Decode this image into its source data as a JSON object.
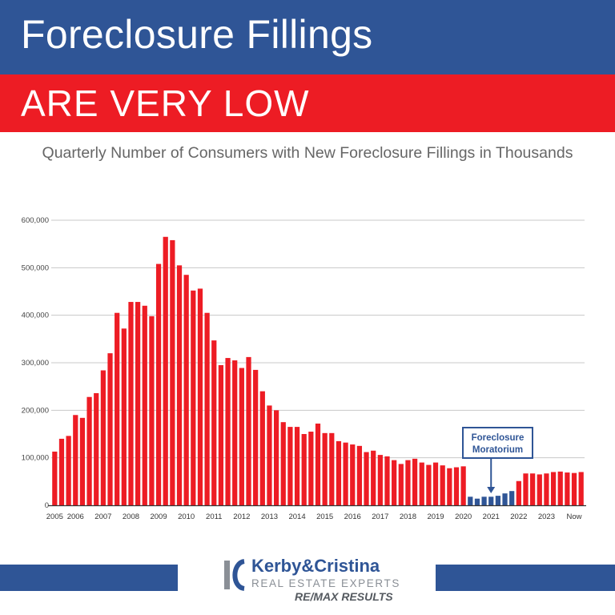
{
  "header": {
    "title": "Foreclosure Fillings",
    "subtitle": "ARE VERY LOW"
  },
  "caption": "Quarterly Number of Consumers with New Foreclosure Fillings in Thousands",
  "chart_data": {
    "type": "bar",
    "title": "Quarterly Number of Consumers with New Foreclosure Fillings in Thousands",
    "xlabel": "",
    "ylabel": "",
    "ylim": [
      0,
      600000
    ],
    "yticks": [
      0,
      100000,
      200000,
      300000,
      400000,
      500000,
      600000
    ],
    "ytick_labels": [
      "0",
      "100,000",
      "200,000",
      "300,000",
      "400,000",
      "500,000",
      "600,000"
    ],
    "grid": true,
    "xtick_labels": [
      "2005",
      "2006",
      "2007",
      "2008",
      "2009",
      "2010",
      "2011",
      "2012",
      "2013",
      "2014",
      "2015",
      "2016",
      "2017",
      "2018",
      "2019",
      "2020",
      "2021",
      "2022",
      "2023",
      "Now"
    ],
    "xtick_positions": [
      0,
      3,
      7,
      11,
      15,
      19,
      23,
      27,
      31,
      35,
      39,
      43,
      47,
      51,
      55,
      59,
      63,
      67,
      71,
      75
    ],
    "moratorium_range": [
      60,
      66
    ],
    "colors": {
      "normal": "#ed1c24",
      "moratorium": "#2f5596",
      "grid": "#c8c8c8",
      "axis": "#333333"
    },
    "annotation": {
      "line1": "Foreclosure",
      "line2": "Moratorium",
      "bar_index": 63
    },
    "series": [
      {
        "name": "New Foreclosure Filings",
        "values": [
          113000,
          140000,
          146000,
          190000,
          184000,
          228000,
          236000,
          284000,
          320000,
          405000,
          372000,
          428000,
          428000,
          420000,
          398000,
          508000,
          565000,
          558000,
          505000,
          485000,
          452000,
          456000,
          405000,
          347000,
          295000,
          310000,
          305000,
          289000,
          312000,
          285000,
          240000,
          210000,
          200000,
          175000,
          165000,
          165000,
          150000,
          155000,
          172000,
          152000,
          152000,
          135000,
          132000,
          128000,
          125000,
          112000,
          115000,
          106000,
          103000,
          95000,
          87000,
          95000,
          98000,
          90000,
          85000,
          90000,
          84000,
          78000,
          80000,
          82000,
          18000,
          14000,
          18000,
          18000,
          20000,
          25000,
          30000,
          51000,
          67000,
          67000,
          65000,
          67000,
          70000,
          71000,
          69000,
          68000,
          70000
        ]
      }
    ]
  },
  "footer": {
    "brand_name": "Kerby&Cristina",
    "brand_tagline": "REAL ESTATE EXPERTS",
    "brand_office": "RE/MAX RESULTS"
  }
}
